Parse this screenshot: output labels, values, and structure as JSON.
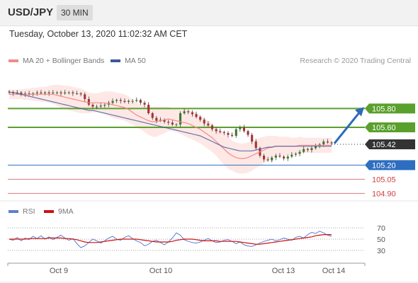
{
  "header": {
    "symbol": "USD/JPY",
    "timeframe": "30 MIN"
  },
  "datetime": "Tuesday, October 13, 2020 11:02:32 AM CET",
  "legend": {
    "ma20": {
      "label": "MA 20 + Bollinger Bands",
      "color": "#f08b8b"
    },
    "ma50": {
      "label": "MA 50",
      "color": "#3a5a9a"
    },
    "rsi": {
      "label": "RSI",
      "color": "#5b7fd0"
    },
    "rsi_ma": {
      "label": "9MA",
      "color": "#d01010"
    }
  },
  "credit": "Research © 2020 Trading Central",
  "chart_data": [
    {
      "type": "candlestick",
      "series": [
        {
          "name": "MA 20 + Bollinger Bands",
          "color": "#f08b8b"
        },
        {
          "name": "MA 50",
          "color": "#3a5a9a"
        }
      ],
      "ylim": [
        104.85,
        106.2
      ],
      "x_ticks": [
        "Oct 9",
        "Oct 10",
        "Oct 13",
        "Oct 14"
      ],
      "levels": [
        {
          "value": 105.8,
          "label": "105.80",
          "kind": "resistance",
          "color": "#5aa02c"
        },
        {
          "value": 105.6,
          "label": "105.60",
          "kind": "resistance",
          "color": "#5aa02c"
        },
        {
          "value": 105.42,
          "label": "105.42",
          "kind": "current",
          "color": "#333333"
        },
        {
          "value": 105.2,
          "label": "105.20",
          "kind": "pivot",
          "color": "#2d6ec0"
        },
        {
          "value": 105.05,
          "label": "105.05",
          "kind": "support",
          "color": "#d04040"
        },
        {
          "value": 104.9,
          "label": "104.90",
          "kind": "support",
          "color": "#d04040"
        }
      ],
      "forecast_arrow": {
        "from": 105.43,
        "to": 105.8,
        "color": "#2d6ab8"
      },
      "price_path": [
        105.97,
        105.96,
        105.97,
        105.95,
        105.96,
        105.95,
        105.96,
        105.97,
        105.96,
        105.97,
        105.96,
        105.97,
        105.97,
        105.96,
        105.97,
        105.97,
        105.96,
        105.96,
        105.95,
        105.9,
        105.84,
        105.82,
        105.82,
        105.83,
        105.84,
        105.86,
        105.88,
        105.89,
        105.88,
        105.87,
        105.88,
        105.88,
        105.89,
        105.86,
        105.84,
        105.75,
        105.7,
        105.67,
        105.68,
        105.66,
        105.65,
        105.63,
        105.63,
        105.75,
        105.77,
        105.76,
        105.74,
        105.71,
        105.68,
        105.64,
        105.62,
        105.58,
        105.56,
        105.55,
        105.54,
        105.52,
        105.51,
        105.58,
        105.6,
        105.56,
        105.52,
        105.45,
        105.38,
        105.3,
        105.26,
        105.25,
        105.28,
        105.3,
        105.29,
        105.27,
        105.29,
        105.31,
        105.32,
        105.34,
        105.37,
        105.36,
        105.38,
        105.4,
        105.42,
        105.45,
        105.44,
        105.43
      ],
      "ma20": [
        105.95,
        105.95,
        105.95,
        105.95,
        105.95,
        105.95,
        105.95,
        105.95,
        105.95,
        105.95,
        105.95,
        105.95,
        105.94,
        105.93,
        105.92,
        105.91,
        105.9,
        105.89,
        105.88,
        105.87,
        105.86,
        105.86,
        105.86,
        105.86,
        105.86,
        105.85,
        105.84,
        105.83,
        105.82,
        105.81,
        105.79,
        105.76,
        105.73,
        105.71,
        105.69,
        105.67,
        105.66,
        105.66,
        105.67,
        105.68,
        105.69,
        105.68,
        105.67,
        105.66,
        105.65,
        105.64,
        105.62,
        105.6,
        105.58,
        105.55,
        105.52,
        105.49,
        105.45,
        105.41,
        105.37,
        105.33,
        105.3,
        105.28,
        105.27,
        105.27,
        105.28,
        105.3,
        105.32,
        105.34,
        105.36,
        105.38,
        105.39,
        105.4,
        105.4,
        105.4,
        105.4,
        105.4,
        105.4,
        105.41,
        105.41,
        105.41,
        105.41,
        105.41,
        105.41,
        105.41,
        105.41,
        105.41
      ],
      "ma50": [
        105.97,
        105.97,
        105.96,
        105.95,
        105.94,
        105.93,
        105.92,
        105.91,
        105.9,
        105.89,
        105.88,
        105.87,
        105.86,
        105.85,
        105.84,
        105.83,
        105.82,
        105.81,
        105.8,
        105.79,
        105.78,
        105.78,
        105.77,
        105.76,
        105.75,
        105.74,
        105.73,
        105.72,
        105.71,
        105.7,
        105.69,
        105.68,
        105.67,
        105.66,
        105.65,
        105.64,
        105.63,
        105.62,
        105.61,
        105.6,
        105.59,
        105.58,
        105.57,
        105.56,
        105.55,
        105.54,
        105.53,
        105.52,
        105.51,
        105.49,
        105.47,
        105.45,
        105.43,
        105.41,
        105.39,
        105.38,
        105.37,
        105.36,
        105.35,
        105.35,
        105.35,
        105.35,
        105.36,
        105.37,
        105.38,
        105.39,
        105.39,
        105.4,
        105.4,
        105.4,
        105.4,
        105.4,
        105.4,
        105.4,
        105.4,
        105.4,
        105.4,
        105.4,
        105.4,
        105.4,
        105.4,
        105.4
      ],
      "band_width": [
        0.05,
        0.05,
        0.05,
        0.05,
        0.06,
        0.06,
        0.07,
        0.07,
        0.08,
        0.08,
        0.09,
        0.1,
        0.11,
        0.12,
        0.12,
        0.13,
        0.13,
        0.13,
        0.13,
        0.12,
        0.11,
        0.1,
        0.1,
        0.11,
        0.12,
        0.13,
        0.14,
        0.14,
        0.14,
        0.14,
        0.14,
        0.13,
        0.13,
        0.13,
        0.14,
        0.15,
        0.16,
        0.16,
        0.15,
        0.14,
        0.13,
        0.12,
        0.12,
        0.13,
        0.14,
        0.15,
        0.15,
        0.15,
        0.15,
        0.15,
        0.15,
        0.15,
        0.15,
        0.16,
        0.17,
        0.17,
        0.16,
        0.16,
        0.16,
        0.16,
        0.16,
        0.16,
        0.15,
        0.15,
        0.14,
        0.13,
        0.12,
        0.11,
        0.1,
        0.1,
        0.1,
        0.09,
        0.09,
        0.09,
        0.08,
        0.08,
        0.08,
        0.08,
        0.08,
        0.08,
        0.08,
        0.08
      ]
    },
    {
      "type": "line",
      "series": [
        {
          "name": "RSI",
          "color": "#5b7fd0",
          "values": [
            50,
            48,
            53,
            47,
            52,
            49,
            55,
            51,
            56,
            50,
            54,
            49,
            53,
            57,
            52,
            48,
            51,
            42,
            35,
            38,
            44,
            50,
            47,
            43,
            47,
            52,
            55,
            50,
            48,
            53,
            56,
            51,
            47,
            44,
            38,
            41,
            46,
            48,
            44,
            40,
            45,
            52,
            61,
            57,
            49,
            46,
            44,
            43,
            45,
            48,
            51,
            47,
            44,
            45,
            48,
            49,
            46,
            42,
            45,
            40,
            38,
            37,
            40,
            43,
            46,
            48,
            50,
            47,
            49,
            52,
            50,
            48,
            53,
            55,
            52,
            58,
            62,
            60,
            64,
            61,
            57,
            55
          ]
        },
        {
          "name": "9MA",
          "color": "#d01010",
          "values": [
            50,
            50,
            50,
            50,
            50,
            51,
            51,
            51,
            51,
            51,
            52,
            52,
            52,
            52,
            51,
            51,
            50,
            49,
            47,
            45,
            44,
            44,
            44,
            45,
            46,
            47,
            48,
            49,
            50,
            50,
            50,
            50,
            50,
            49,
            48,
            47,
            46,
            45,
            45,
            45,
            45,
            46,
            48,
            49,
            50,
            50,
            50,
            49,
            48,
            47,
            47,
            47,
            47,
            46,
            46,
            46,
            46,
            46,
            45,
            44,
            43,
            42,
            41,
            41,
            42,
            43,
            44,
            45,
            46,
            47,
            48,
            49,
            50,
            51,
            52,
            53,
            54,
            56,
            57,
            58,
            58,
            58
          ]
        }
      ],
      "ylim": [
        15,
        85
      ],
      "y_ticks": [
        30,
        50,
        70
      ]
    }
  ]
}
